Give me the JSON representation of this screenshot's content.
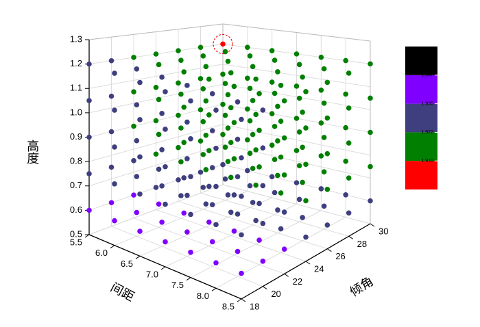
{
  "chart_data": {
    "type": "scatter3d",
    "xlabel": "间距",
    "ylabel": "倾角",
    "zlabel": "高度",
    "xlim": [
      5.5,
      8.5
    ],
    "ylim": [
      18,
      30
    ],
    "zlim": [
      0.5,
      1.3
    ],
    "xticks": [
      5.5,
      {
        "value": 6,
        "label": "6.0"
      },
      6.5,
      {
        "value": 7,
        "label": "7.0"
      },
      7.5,
      {
        "value": 8,
        "label": "8.0"
      },
      8.5
    ],
    "yticks": [
      18,
      20,
      22,
      24,
      26,
      28,
      30
    ],
    "zticks": [
      0.5,
      0.6,
      0.7,
      0.8,
      0.9,
      {
        "value": 1,
        "label": "1.0"
      },
      1.1,
      1.2,
      1.3
    ],
    "grid": true,
    "colorscale": {
      "levels": [
        {
          "value": 1.91,
          "label": "1.910"
        },
        1.922,
        1.935,
        1.947
      ],
      "colors": [
        "#ff0000",
        "#007f00",
        "#3f3f7f",
        "#7f00ff",
        "#000000"
      ]
    },
    "series": [
      {
        "x": [
          5.5,
          5.5,
          5.5,
          5.5,
          5.5,
          5.5,
          5.5,
          5.5,
          5.5,
          5.5,
          5.5,
          5.5,
          5.5,
          5.5,
          5.5,
          5.5,
          5.5,
          5.5,
          5.5,
          5.5,
          5.5,
          5.5,
          5.5,
          5.5,
          5.5,
          5.5,
          5.5,
          5.5,
          5.5,
          5.5,
          5.5,
          5.5,
          5.5,
          5.5,
          5.5,
          6,
          6,
          6,
          6,
          6,
          6,
          6,
          6,
          6,
          6,
          6,
          6,
          6,
          6,
          6,
          6,
          6,
          6,
          6,
          6,
          6,
          6,
          6,
          6,
          6,
          6,
          6,
          6,
          6,
          6,
          6,
          6,
          6,
          6,
          6,
          6.5,
          6.5,
          6.5,
          6.5,
          6.5,
          6.5,
          6.5,
          6.5,
          6.5,
          6.5,
          6.5,
          6.5,
          6.5,
          6.5,
          6.5,
          6.5,
          6.5,
          6.5,
          6.5,
          6.5,
          6.5,
          6.5,
          6.5,
          6.5,
          6.5,
          6.5,
          6.5,
          6.5,
          6.5,
          6.5,
          6.5,
          6.5,
          6.5,
          6.5,
          6.5,
          7,
          7,
          7,
          7,
          7,
          7,
          7,
          7,
          7,
          7,
          7,
          7,
          7,
          7,
          7,
          7,
          7,
          7,
          7,
          7,
          7,
          7,
          7,
          7,
          7,
          7,
          7,
          7,
          7,
          7,
          7,
          7,
          7,
          7,
          7,
          7.5,
          7.5,
          7.5,
          7.5,
          7.5,
          7.5,
          7.5,
          7.5,
          7.5,
          7.5,
          7.5,
          7.5,
          7.5,
          7.5,
          7.5,
          7.5,
          7.5,
          7.5,
          7.5,
          7.5,
          7.5,
          7.5,
          7.5,
          7.5,
          7.5,
          7.5,
          7.5,
          7.5,
          7.5,
          7.5,
          7.5,
          7.5,
          7.5,
          7.5,
          7.5,
          8,
          8,
          8,
          8,
          8,
          8,
          8,
          8,
          8,
          8,
          8,
          8,
          8,
          8,
          8,
          8,
          8,
          8,
          8,
          8,
          8,
          8,
          8,
          8,
          8,
          8,
          8,
          8,
          8,
          8,
          8,
          8,
          8,
          8,
          8,
          8.5,
          8.5,
          8.5,
          8.5,
          8.5,
          8.5,
          8.5,
          8.5,
          8.5,
          8.5,
          8.5,
          8.5,
          8.5,
          8.5,
          8.5,
          8.5,
          8.5,
          8.5,
          8.5,
          8.5,
          8.5,
          8.5,
          8.5,
          8.5,
          8.5,
          8.5,
          8.5,
          8.5,
          8.5,
          8.5,
          8.5,
          8.5,
          8.5,
          8.5,
          8.5
        ],
        "y": [
          18,
          18,
          18,
          18,
          18,
          20,
          20,
          20,
          20,
          20,
          22,
          22,
          22,
          22,
          22,
          24,
          24,
          24,
          24,
          24,
          26,
          26,
          26,
          26,
          26,
          28,
          28,
          28,
          28,
          28,
          30,
          30,
          30,
          30,
          30,
          18,
          18,
          18,
          18,
          18,
          20,
          20,
          20,
          20,
          20,
          22,
          22,
          22,
          22,
          22,
          24,
          24,
          24,
          24,
          24,
          26,
          26,
          26,
          26,
          26,
          28,
          28,
          28,
          28,
          28,
          30,
          30,
          30,
          30,
          30,
          18,
          18,
          18,
          18,
          18,
          20,
          20,
          20,
          20,
          20,
          22,
          22,
          22,
          22,
          22,
          24,
          24,
          24,
          24,
          24,
          26,
          26,
          26,
          26,
          26,
          28,
          28,
          28,
          28,
          28,
          30,
          30,
          30,
          30,
          30,
          18,
          18,
          18,
          18,
          18,
          20,
          20,
          20,
          20,
          20,
          22,
          22,
          22,
          22,
          22,
          24,
          24,
          24,
          24,
          24,
          26,
          26,
          26,
          26,
          26,
          28,
          28,
          28,
          28,
          28,
          30,
          30,
          30,
          30,
          30,
          18,
          18,
          18,
          18,
          18,
          20,
          20,
          20,
          20,
          20,
          22,
          22,
          22,
          22,
          22,
          24,
          24,
          24,
          24,
          24,
          26,
          26,
          26,
          26,
          26,
          28,
          28,
          28,
          28,
          28,
          30,
          30,
          30,
          30,
          30,
          18,
          18,
          18,
          18,
          18,
          20,
          20,
          20,
          20,
          20,
          22,
          22,
          22,
          22,
          22,
          24,
          24,
          24,
          24,
          24,
          26,
          26,
          26,
          26,
          26,
          28,
          28,
          28,
          28,
          28,
          30,
          30,
          30,
          30,
          30,
          18,
          18,
          18,
          18,
          18,
          20,
          20,
          20,
          20,
          20,
          22,
          22,
          22,
          22,
          22,
          24,
          24,
          24,
          24,
          24,
          26,
          26,
          26,
          26,
          26,
          28,
          28,
          28,
          28,
          28,
          30,
          30,
          30,
          30,
          30
        ],
        "z": [
          0.6,
          0.75,
          0.9,
          1.05,
          1.2,
          0.6,
          0.75,
          0.9,
          1.05,
          1.2,
          0.6,
          0.75,
          0.9,
          1.05,
          1.2,
          0.6,
          0.75,
          0.9,
          1.05,
          1.2,
          0.6,
          0.75,
          0.9,
          1.05,
          1.2,
          0.6,
          0.75,
          0.9,
          1.05,
          1.2,
          0.6,
          0.75,
          0.9,
          1.05,
          1.2,
          0.6,
          0.75,
          0.9,
          1.05,
          1.2,
          0.6,
          0.75,
          0.9,
          1.05,
          1.2,
          0.6,
          0.75,
          0.9,
          1.05,
          1.2,
          0.6,
          0.75,
          0.9,
          1.05,
          1.2,
          0.6,
          0.75,
          0.9,
          1.05,
          1.2,
          0.6,
          0.75,
          0.9,
          1.05,
          1.2,
          0.6,
          0.75,
          0.9,
          1.05,
          1.2,
          0.6,
          0.75,
          0.9,
          1.05,
          1.2,
          0.6,
          0.75,
          0.9,
          1.05,
          1.2,
          0.6,
          0.75,
          0.9,
          1.05,
          1.2,
          0.6,
          0.75,
          0.9,
          1.05,
          1.2,
          0.6,
          0.75,
          0.9,
          1.05,
          1.2,
          0.6,
          0.75,
          0.9,
          1.05,
          1.2,
          0.6,
          0.75,
          0.9,
          1.05,
          1.2,
          0.6,
          0.75,
          0.9,
          1.05,
          1.2,
          0.6,
          0.75,
          0.9,
          1.05,
          1.2,
          0.6,
          0.75,
          0.9,
          1.05,
          1.2,
          0.6,
          0.75,
          0.9,
          1.05,
          1.2,
          0.6,
          0.75,
          0.9,
          1.05,
          1.2,
          0.6,
          0.75,
          0.9,
          1.05,
          1.2,
          0.6,
          0.75,
          0.9,
          1.05,
          1.2,
          0.6,
          0.75,
          0.9,
          1.05,
          1.2,
          0.6,
          0.75,
          0.9,
          1.05,
          1.2,
          0.6,
          0.75,
          0.9,
          1.05,
          1.2,
          0.6,
          0.75,
          0.9,
          1.05,
          1.2,
          0.6,
          0.75,
          0.9,
          1.05,
          1.2,
          0.6,
          0.75,
          0.9,
          1.05,
          1.2,
          0.6,
          0.75,
          0.9,
          1.05,
          1.2,
          0.6,
          0.75,
          0.9,
          1.05,
          1.2,
          0.6,
          0.75,
          0.9,
          1.05,
          1.2,
          0.6,
          0.75,
          0.9,
          1.05,
          1.2,
          0.6,
          0.75,
          0.9,
          1.05,
          1.2,
          0.6,
          0.75,
          0.9,
          1.05,
          1.2,
          0.6,
          0.75,
          0.9,
          1.05,
          1.2,
          0.6,
          0.75,
          0.9,
          1.05,
          1.2,
          0.6,
          0.75,
          0.9,
          1.05,
          1.2,
          0.6,
          0.75,
          0.9,
          1.05,
          1.2,
          0.6,
          0.75,
          0.9,
          1.05,
          1.2,
          0.6,
          0.75,
          0.9,
          1.05,
          1.2,
          0.6,
          0.75,
          0.9,
          1.05,
          1.2,
          0.6,
          0.75,
          0.9,
          1.05,
          1.2,
          0.6,
          0.75,
          0.9,
          1.05,
          1.2
        ],
        "values": [
          1.94,
          1.93,
          1.93,
          1.93,
          1.93,
          1.94,
          1.93,
          1.93,
          1.93,
          1.93,
          1.94,
          1.93,
          1.915,
          1.915,
          1.915,
          1.93,
          1.915,
          1.915,
          1.915,
          1.915,
          1.93,
          1.915,
          1.915,
          1.915,
          1.915,
          1.93,
          1.915,
          1.915,
          1.915,
          1.915,
          1.93,
          1.915,
          1.915,
          1.915,
          1.905,
          1.94,
          1.93,
          1.93,
          1.93,
          1.93,
          1.94,
          1.93,
          1.93,
          1.93,
          1.93,
          1.94,
          1.93,
          1.915,
          1.915,
          1.915,
          1.93,
          1.915,
          1.915,
          1.915,
          1.915,
          1.93,
          1.915,
          1.915,
          1.915,
          1.915,
          1.93,
          1.915,
          1.915,
          1.915,
          1.915,
          1.93,
          1.915,
          1.915,
          1.915,
          1.915,
          1.94,
          1.93,
          1.93,
          1.93,
          1.93,
          1.94,
          1.93,
          1.93,
          1.93,
          1.93,
          1.94,
          1.93,
          1.915,
          1.915,
          1.915,
          1.93,
          1.915,
          1.915,
          1.915,
          1.915,
          1.93,
          1.915,
          1.915,
          1.915,
          1.915,
          1.93,
          1.915,
          1.915,
          1.915,
          1.915,
          1.93,
          1.915,
          1.915,
          1.915,
          1.915,
          1.94,
          1.93,
          1.93,
          1.93,
          1.93,
          1.94,
          1.93,
          1.93,
          1.93,
          1.93,
          1.94,
          1.93,
          1.915,
          1.915,
          1.915,
          1.93,
          1.915,
          1.915,
          1.915,
          1.915,
          1.93,
          1.915,
          1.915,
          1.915,
          1.915,
          1.93,
          1.915,
          1.915,
          1.915,
          1.915,
          1.93,
          1.915,
          1.915,
          1.915,
          1.915,
          1.94,
          1.93,
          1.93,
          1.93,
          1.93,
          1.94,
          1.93,
          1.93,
          1.93,
          1.93,
          1.94,
          1.93,
          1.915,
          1.915,
          1.915,
          1.93,
          1.915,
          1.915,
          1.915,
          1.915,
          1.93,
          1.915,
          1.915,
          1.915,
          1.915,
          1.93,
          1.915,
          1.915,
          1.915,
          1.915,
          1.93,
          1.915,
          1.915,
          1.915,
          1.915,
          1.94,
          1.93,
          1.93,
          1.93,
          1.93,
          1.94,
          1.93,
          1.93,
          1.93,
          1.93,
          1.94,
          1.93,
          1.915,
          1.915,
          1.915,
          1.93,
          1.915,
          1.915,
          1.915,
          1.915,
          1.93,
          1.915,
          1.915,
          1.915,
          1.915,
          1.93,
          1.915,
          1.915,
          1.915,
          1.915,
          1.93,
          1.915,
          1.915,
          1.915,
          1.915,
          1.94,
          1.93,
          1.93,
          1.93,
          1.93,
          1.94,
          1.93,
          1.93,
          1.93,
          1.93,
          1.94,
          1.93,
          1.915,
          1.915,
          1.915,
          1.93,
          1.915,
          1.915,
          1.915,
          1.915,
          1.93,
          1.915,
          1.915,
          1.915,
          1.915,
          1.93,
          1.915,
          1.915,
          1.915,
          1.915,
          1.93,
          1.915,
          1.915,
          1.915,
          1.915
        ]
      }
    ]
  }
}
